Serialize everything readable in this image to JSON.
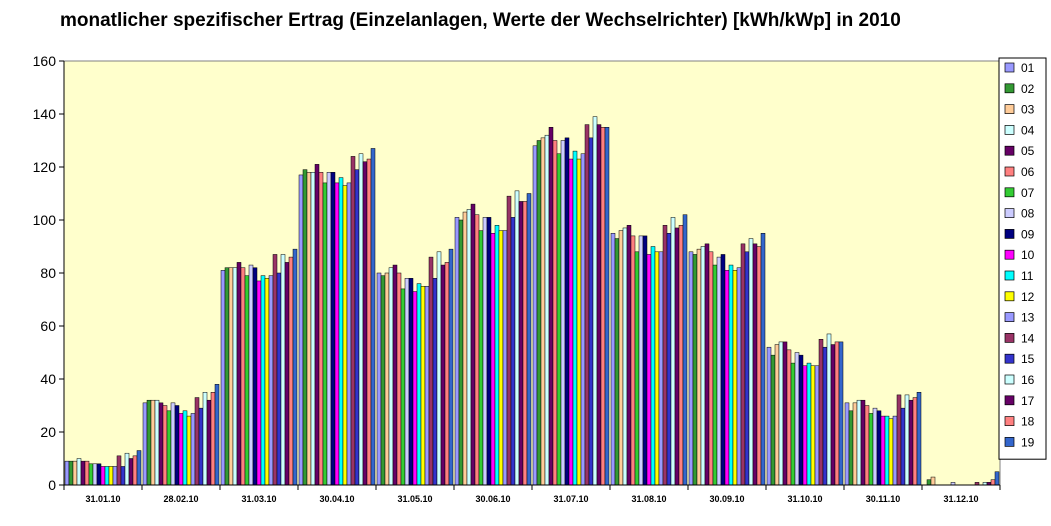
{
  "chart_data": {
    "type": "bar",
    "title": "monatlicher spezifischer Ertrag (Einzelanlagen, Werte der Wechselrichter) [kWh/kWp] in 2010",
    "xlabel": "",
    "ylabel": "",
    "ylim": [
      0,
      160
    ],
    "yticks": [
      0,
      20,
      40,
      60,
      80,
      100,
      120,
      140,
      160
    ],
    "grid": false,
    "legend_position": "right",
    "plot_background": "#ffffcc",
    "categories": [
      "31.01.10",
      "28.02.10",
      "31.03.10",
      "30.04.10",
      "31.05.10",
      "30.06.10",
      "31.07.10",
      "31.08.10",
      "30.09.10",
      "31.10.10",
      "30.11.10",
      "31.12.10"
    ],
    "series": [
      {
        "name": "01",
        "color": "#9999ff",
        "values": [
          9,
          31,
          81,
          117,
          80,
          101,
          128,
          95,
          88,
          52,
          31,
          0
        ]
      },
      {
        "name": "02",
        "color": "#339933",
        "values": [
          9,
          32,
          82,
          119,
          79,
          100,
          130,
          93,
          87,
          49,
          28,
          2
        ]
      },
      {
        "name": "03",
        "color": "#ffcc99",
        "values": [
          9,
          32,
          82,
          118,
          80,
          103,
          131,
          96,
          89,
          53,
          31,
          3
        ]
      },
      {
        "name": "04",
        "color": "#ccffff",
        "values": [
          10,
          32,
          82,
          118,
          82,
          104,
          132,
          97,
          90,
          54,
          32,
          0
        ]
      },
      {
        "name": "05",
        "color": "#660066",
        "values": [
          9,
          31,
          84,
          121,
          83,
          106,
          135,
          98,
          91,
          54,
          32,
          0
        ]
      },
      {
        "name": "06",
        "color": "#ff8080",
        "values": [
          9,
          30,
          82,
          118,
          80,
          102,
          130,
          94,
          88,
          51,
          30,
          0
        ]
      },
      {
        "name": "07",
        "color": "#33cc33",
        "values": [
          8,
          28,
          79,
          114,
          74,
          96,
          125,
          88,
          83,
          46,
          27,
          0
        ]
      },
      {
        "name": "08",
        "color": "#ccccff",
        "values": [
          8,
          31,
          83,
          118,
          78,
          101,
          130,
          94,
          86,
          50,
          29,
          1
        ]
      },
      {
        "name": "09",
        "color": "#000080",
        "values": [
          8,
          30,
          82,
          118,
          78,
          101,
          131,
          94,
          87,
          49,
          28,
          0
        ]
      },
      {
        "name": "10",
        "color": "#ff00ff",
        "values": [
          7,
          27,
          77,
          114,
          73,
          95,
          123,
          87,
          81,
          45,
          26,
          0
        ]
      },
      {
        "name": "11",
        "color": "#00ffff",
        "values": [
          7,
          28,
          79,
          116,
          76,
          98,
          126,
          90,
          83,
          46,
          26,
          0
        ]
      },
      {
        "name": "12",
        "color": "#ffff00",
        "values": [
          7,
          26,
          78,
          113,
          75,
          96,
          123,
          88,
          81,
          45,
          25,
          0
        ]
      },
      {
        "name": "13",
        "color": "#9999ff",
        "values": [
          7,
          27,
          79,
          114,
          75,
          96,
          125,
          88,
          82,
          45,
          26,
          0
        ]
      },
      {
        "name": "14",
        "color": "#993366",
        "values": [
          11,
          33,
          87,
          124,
          86,
          109,
          136,
          98,
          91,
          55,
          34,
          1
        ]
      },
      {
        "name": "15",
        "color": "#3333cc",
        "values": [
          7,
          29,
          80,
          119,
          78,
          101,
          131,
          95,
          88,
          52,
          29,
          0
        ]
      },
      {
        "name": "16",
        "color": "#ccffff",
        "values": [
          12,
          35,
          87,
          125,
          88,
          111,
          139,
          101,
          93,
          57,
          34,
          1
        ]
      },
      {
        "name": "17",
        "color": "#660066",
        "values": [
          10,
          32,
          84,
          122,
          83,
          107,
          136,
          97,
          91,
          53,
          32,
          1
        ]
      },
      {
        "name": "18",
        "color": "#ff8080",
        "values": [
          11,
          35,
          86,
          123,
          84,
          107,
          135,
          98,
          90,
          54,
          33,
          2
        ]
      },
      {
        "name": "19",
        "color": "#3366cc",
        "values": [
          13,
          38,
          89,
          127,
          89,
          110,
          135,
          102,
          95,
          54,
          35,
          5
        ]
      }
    ]
  }
}
